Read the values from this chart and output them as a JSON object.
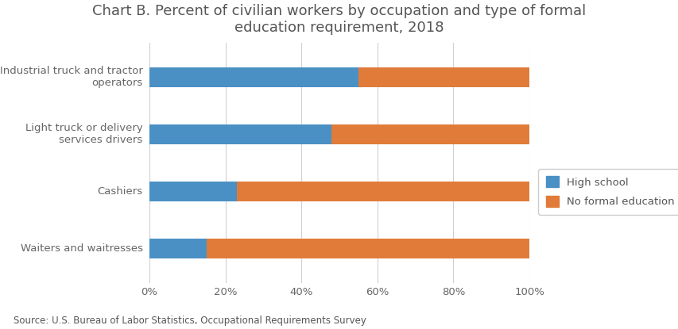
{
  "title": "Chart B. Percent of civilian workers by occupation and type of formal\neducation requirement, 2018",
  "categories": [
    "Waiters and waitresses",
    "Cashiers",
    "Light truck or delivery\nservices drivers",
    "Industrial truck and tractor\noperators"
  ],
  "high_school": [
    15,
    23,
    48,
    55
  ],
  "no_formal_education": [
    85,
    77,
    52,
    45
  ],
  "color_high_school": "#4a90c4",
  "color_no_formal": "#e07b39",
  "legend_labels": [
    "High school",
    "No formal education"
  ],
  "xlim": [
    0,
    100
  ],
  "xtick_labels": [
    "0%",
    "20%",
    "40%",
    "60%",
    "80%",
    "100%"
  ],
  "xtick_values": [
    0,
    20,
    40,
    60,
    80,
    100
  ],
  "source": "Source: U.S. Bureau of Labor Statistics, Occupational Requirements Survey",
  "title_fontsize": 13,
  "label_fontsize": 9.5,
  "source_fontsize": 8.5,
  "background_color": "#ffffff",
  "bar_height": 0.35
}
